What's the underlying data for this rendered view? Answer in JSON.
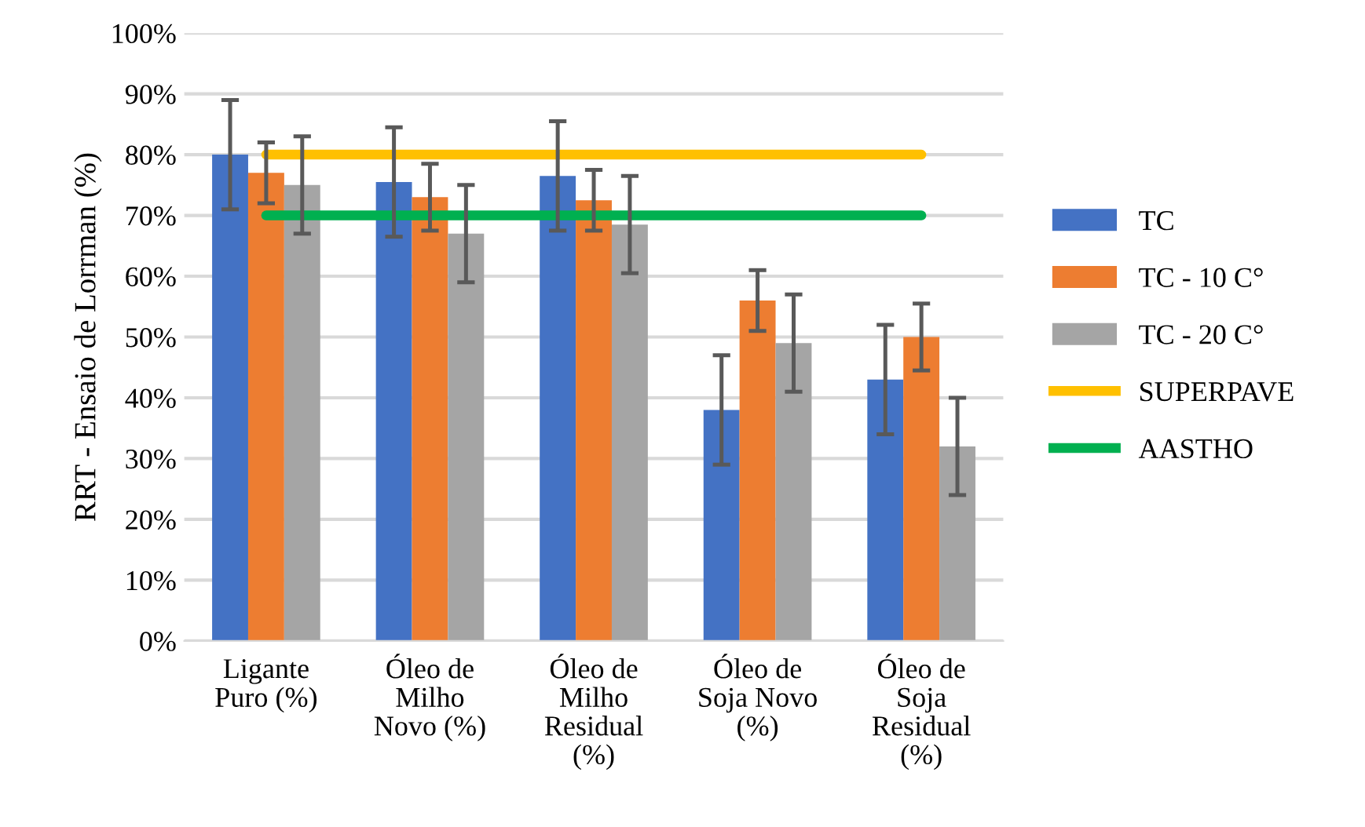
{
  "chart_data": {
    "type": "bar",
    "ylabel": "RRT - Ensaio de Lorrman (%)",
    "categories": [
      "Ligante\nPuro (%)",
      "Óleo de\nMilho\nNovo (%)",
      "Óleo de\nMilho\nResidual\n(%)",
      "Óleo de\nSoja Novo\n(%)",
      "Óleo de\nSoja\nResidual\n(%)"
    ],
    "series": [
      {
        "name": "TC",
        "color": "#4472c4",
        "values": [
          80,
          75.5,
          76.5,
          38,
          43
        ],
        "errors": [
          9,
          9,
          9,
          9,
          9
        ]
      },
      {
        "name": "TC - 10 C°",
        "color": "#ed7d31",
        "values": [
          77,
          73,
          72.5,
          56,
          50
        ],
        "errors": [
          5,
          5.5,
          5,
          5,
          5.5
        ]
      },
      {
        "name": "TC - 20 C°",
        "color": "#a5a5a5",
        "values": [
          75,
          67,
          68.5,
          49,
          32
        ],
        "errors": [
          8,
          8,
          8,
          8,
          8
        ]
      },
      {
        "name": "SUPERPAVE",
        "type": "line",
        "color": "#ffc000",
        "values": [
          80,
          80,
          80,
          80,
          80
        ]
      },
      {
        "name": "AASTHO",
        "type": "line",
        "color": "#00b050",
        "values": [
          70,
          70,
          70,
          70,
          70
        ]
      }
    ],
    "ylim": [
      0,
      100
    ],
    "yticks": [
      {
        "value": 0,
        "label": "0%"
      },
      {
        "value": 10,
        "label": "10%"
      },
      {
        "value": 20,
        "label": "20%"
      },
      {
        "value": 30,
        "label": "30%"
      },
      {
        "value": 40,
        "label": "40%"
      },
      {
        "value": 50,
        "label": "50%"
      },
      {
        "value": 60,
        "label": "60%"
      },
      {
        "value": 70,
        "label": "70%"
      },
      {
        "value": 80,
        "label": "80%"
      },
      {
        "value": 90,
        "label": "90%"
      },
      {
        "value": 100,
        "label": "100%"
      }
    ],
    "grid": "y",
    "legend": "right",
    "marker": "none",
    "line_style": "solid"
  }
}
